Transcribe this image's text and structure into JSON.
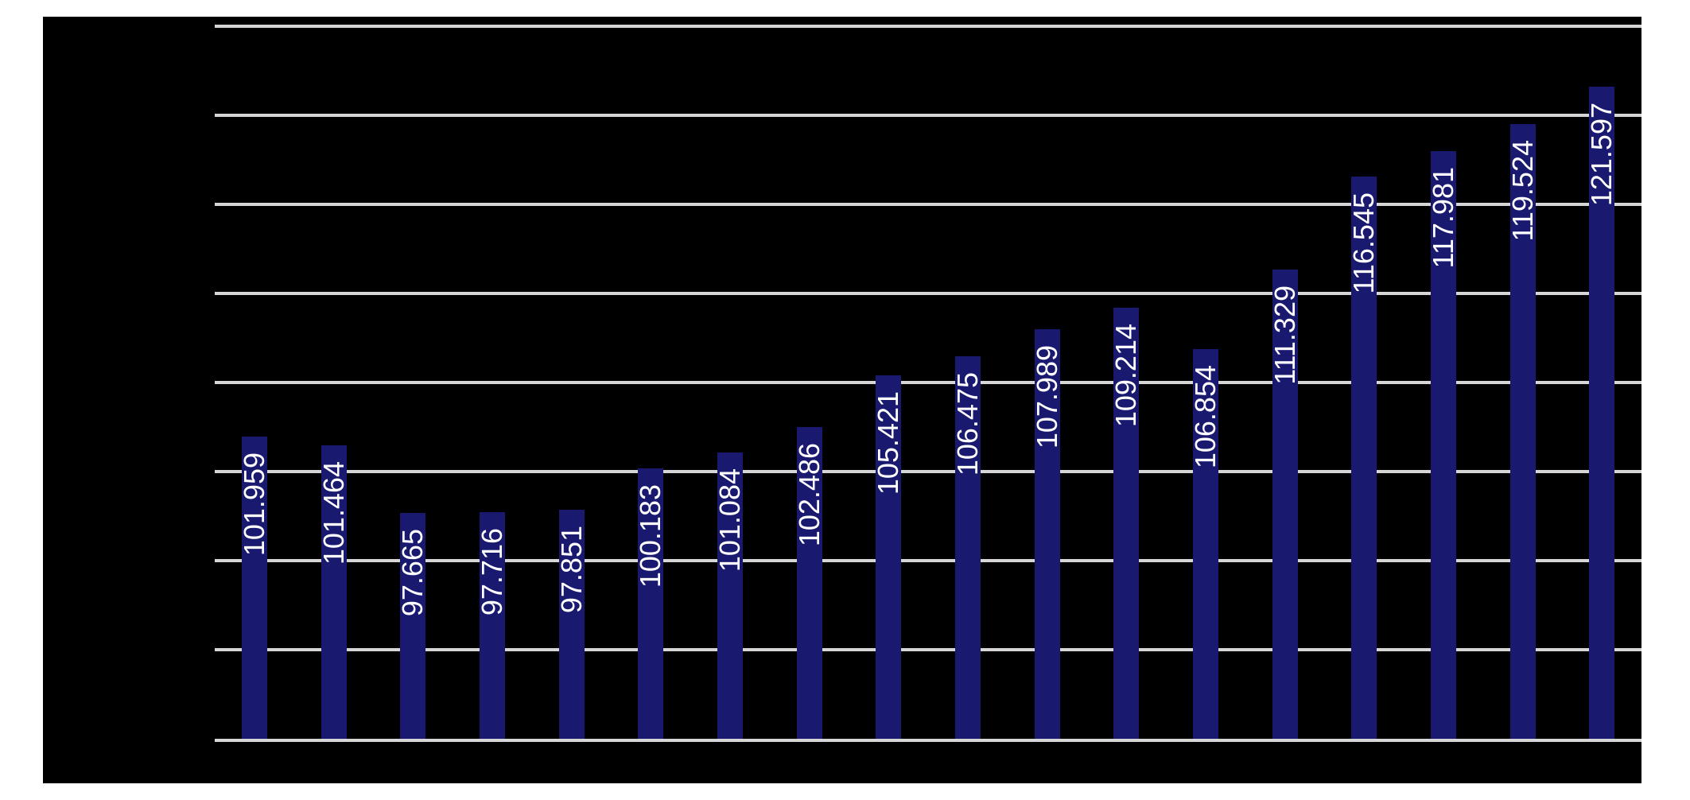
{
  "page": {
    "background_color": "#ffffff"
  },
  "chart": {
    "background_color": "#000000",
    "gridline_color": "#d6d6d6",
    "bar_color": "#191970",
    "data_label_color": "#ffffff",
    "title": "",
    "legend": "none"
  },
  "chart_data": {
    "type": "bar",
    "title": "",
    "xlabel": "",
    "ylabel": "",
    "values": [
      101.959,
      101.464,
      97.665,
      97.716,
      97.851,
      100.183,
      101.084,
      102.486,
      105.421,
      106.475,
      107.989,
      109.214,
      106.854,
      111.329,
      116.545,
      117.981,
      119.524,
      121.597
    ],
    "data_labels": [
      "101.959",
      "101.464",
      "97.665",
      "97.716",
      "97.851",
      "100.183",
      "101.084",
      "102.486",
      "105.421",
      "106.475",
      "107.989",
      "109.214",
      "106.854",
      "111.329",
      "116.545",
      "117.981",
      "119.524",
      "121.597"
    ],
    "ylim": [
      85,
      125
    ],
    "ytick_step": 5,
    "grid": true,
    "gridline_count": 9,
    "legend_position": "none",
    "axis_tick_labels_visible": false,
    "data_label_rotation": "bottom-to-top"
  }
}
